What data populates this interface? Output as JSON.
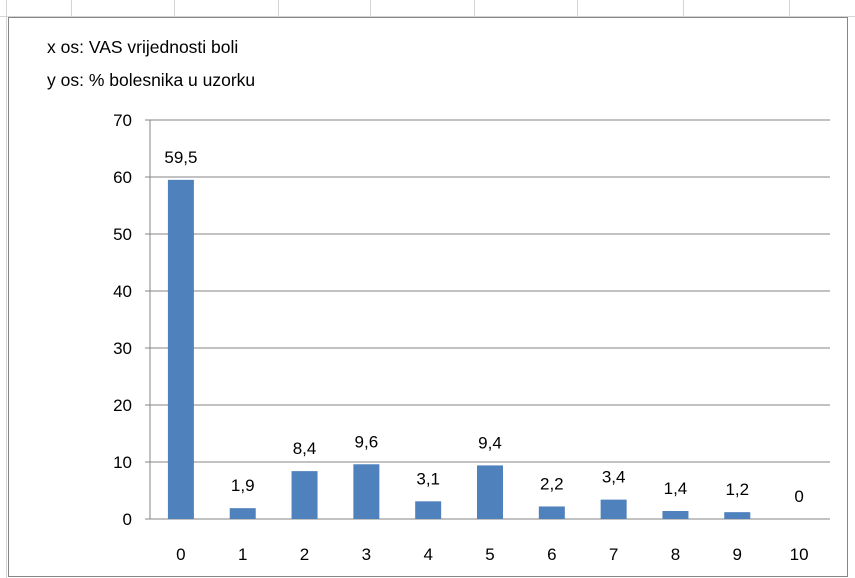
{
  "chart_data": {
    "type": "bar",
    "annotations": [
      "x os: VAS vrijednosti boli",
      "y os: % bolesnika  u uzorku"
    ],
    "categories": [
      "0",
      "1",
      "2",
      "3",
      "4",
      "5",
      "6",
      "7",
      "8",
      "9",
      "10"
    ],
    "values": [
      59.5,
      1.9,
      8.4,
      9.6,
      3.1,
      9.4,
      2.2,
      3.4,
      1.4,
      1.2,
      0
    ],
    "data_labels": [
      "59,5",
      "1,9",
      "8,4",
      "9,6",
      "3,1",
      "9,4",
      "2,2",
      "3,4",
      "1,4",
      "1,2",
      "0"
    ],
    "yticks": [
      "0",
      "10",
      "20",
      "30",
      "40",
      "50",
      "60",
      "70"
    ],
    "ylim": [
      0,
      70
    ],
    "grid": true,
    "legend": "none",
    "bar_color": "#4f81bd",
    "grid_color": "#868686"
  }
}
